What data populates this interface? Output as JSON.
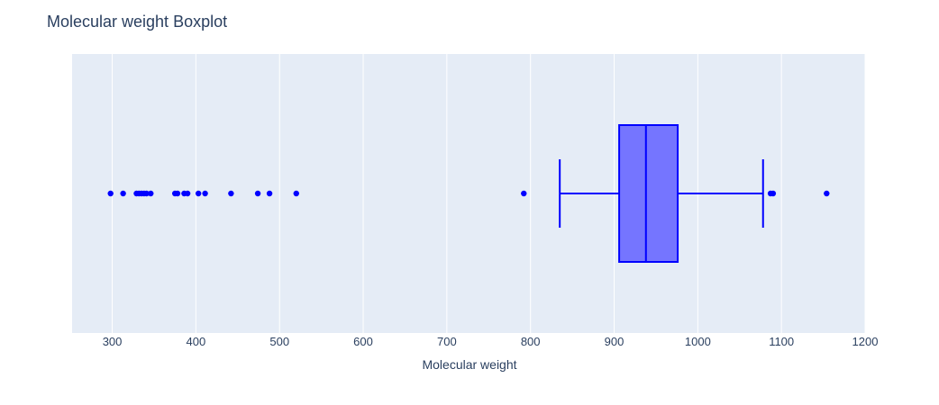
{
  "chart_data": {
    "type": "box",
    "title": "Molecular weight Boxplot",
    "xlabel": "Molecular weight",
    "ylabel": "",
    "orientation": "horizontal",
    "xlim": [
      252,
      1200
    ],
    "x_ticks": [
      300,
      400,
      500,
      600,
      700,
      800,
      900,
      1000,
      1100,
      1200
    ],
    "grid": true,
    "colors": {
      "plot_background": "#e5ecf6",
      "grid": "#ffffff",
      "box_line": "#0000ff",
      "box_fill": "#7575ff",
      "points": "#0000ff"
    },
    "box": {
      "lower_whisker": 835,
      "q1": 906,
      "median": 938,
      "q3": 976,
      "upper_whisker": 1078
    },
    "outliers": [
      298,
      313,
      329,
      332,
      335,
      338,
      341,
      346,
      375,
      378,
      386,
      390,
      403,
      411,
      442,
      474,
      488,
      520,
      792,
      1087,
      1090,
      1154
    ]
  }
}
